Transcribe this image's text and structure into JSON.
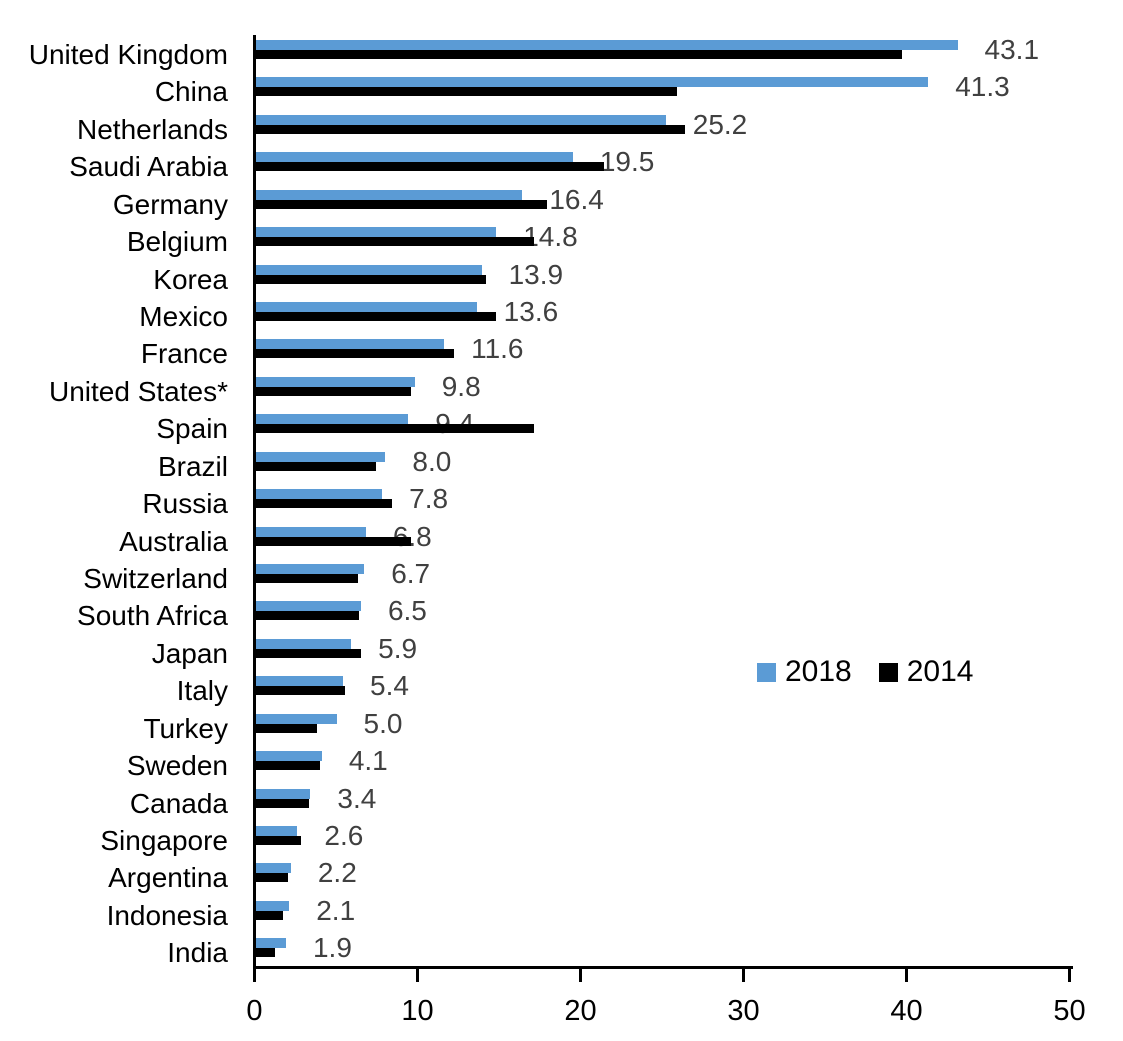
{
  "chart_data": {
    "type": "bar",
    "orientation": "horizontal",
    "title": "",
    "xlabel": "",
    "ylabel": "",
    "xlim": [
      0,
      50
    ],
    "x_ticks": [
      "0",
      "10",
      "20",
      "30",
      "40",
      "50"
    ],
    "grid": false,
    "legend_position": "middle-right",
    "value_label_color": "#404040",
    "categories": [
      "United Kingdom",
      "China",
      "Netherlands",
      "Saudi Arabia",
      "Germany",
      "Belgium",
      "Korea",
      "Mexico",
      "France",
      "United States*",
      "Spain",
      "Brazil",
      "Russia",
      "Australia",
      "Switzerland",
      "South Africa",
      "Japan",
      "Italy",
      "Turkey",
      "Sweden",
      "Canada",
      "Singapore",
      "Argentina",
      "Indonesia",
      "India"
    ],
    "series": [
      {
        "name": "2018",
        "color": "#5B9BD5",
        "values": [
          43.1,
          41.3,
          25.2,
          19.5,
          16.4,
          14.8,
          13.9,
          13.6,
          11.6,
          9.8,
          9.4,
          8.0,
          7.8,
          6.8,
          6.7,
          6.5,
          5.9,
          5.4,
          5.0,
          4.1,
          3.4,
          2.6,
          2.2,
          2.1,
          1.9
        ]
      },
      {
        "name": "2014",
        "color": "#000000",
        "values": [
          39.7,
          25.9,
          26.4,
          21.4,
          17.9,
          17.1,
          14.2,
          14.8,
          12.2,
          9.6,
          17.1,
          7.4,
          8.4,
          9.6,
          6.3,
          6.4,
          6.5,
          5.5,
          3.8,
          4.0,
          3.3,
          2.8,
          2.0,
          1.7,
          1.2
        ]
      }
    ],
    "data_labels": [
      "43.1",
      "41.3",
      "25.2",
      "19.5",
      "16.4",
      "14.8",
      "13.9",
      "13.6",
      "11.6",
      "9.8",
      "9.4",
      "8.0",
      "7.8",
      "6.8",
      "6.7",
      "6.5",
      "5.9",
      "5.4",
      "5.0",
      "4.1",
      "3.4",
      "2.6",
      "2.2",
      "2.1",
      "1.9"
    ]
  }
}
